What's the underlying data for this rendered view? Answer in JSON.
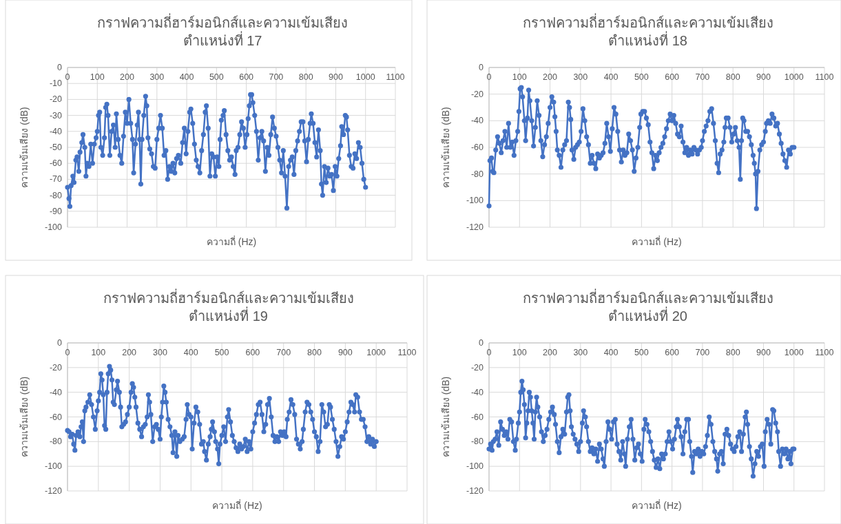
{
  "chart_data": [
    {
      "type": "line",
      "title": "กราฟความถี่ฮาร์มอนิกส์และความเข้มเสียง\nตำแหน่งที่ 17",
      "xlabel": "ความถี่ (Hz)",
      "ylabel": "ความเข้มเสียง (dB)",
      "xlim": [
        0,
        1100
      ],
      "xticks": [
        0,
        100,
        200,
        300,
        400,
        500,
        600,
        700,
        800,
        900,
        1000,
        1100
      ],
      "ylim": [
        -100,
        0
      ],
      "yticks": [
        0,
        -10,
        -20,
        -30,
        -40,
        -50,
        -60,
        -70,
        -80,
        -90,
        -100
      ],
      "grid": true,
      "marker": "circle",
      "line_style": "solid",
      "x": [
        0,
        5,
        8,
        12,
        18,
        22,
        28,
        32,
        38,
        42,
        48,
        52,
        58,
        62,
        66,
        72,
        78,
        84,
        90,
        96,
        100,
        104,
        108,
        112,
        118,
        124,
        128,
        132,
        136,
        142,
        148,
        154,
        160,
        164,
        170,
        176,
        182,
        188,
        194,
        200,
        206,
        212,
        218,
        222,
        228,
        234,
        238,
        242,
        246,
        250,
        256,
        262,
        266,
        270,
        276,
        282,
        288,
        294,
        300,
        306,
        312,
        318,
        324,
        330,
        336,
        342,
        348,
        354,
        360,
        366,
        372,
        380,
        386,
        392,
        398,
        404,
        410,
        414,
        420,
        426,
        432,
        438,
        444,
        450,
        456,
        462,
        466,
        472,
        478,
        484,
        490,
        496,
        502,
        508,
        512,
        516,
        522,
        526,
        532,
        538,
        544,
        550,
        556,
        562,
        566,
        572,
        578,
        584,
        590,
        596,
        602,
        606,
        610,
        614,
        618,
        622,
        628,
        634,
        640,
        646,
        652,
        658,
        664,
        670,
        676,
        682,
        688,
        694,
        700,
        706,
        712,
        718,
        724,
        730,
        736,
        742,
        748,
        754,
        760,
        766,
        772,
        778,
        784,
        790,
        796,
        802,
        808,
        814,
        818,
        824,
        830,
        836,
        842,
        848,
        852,
        856,
        862,
        868,
        874,
        880,
        886,
        892,
        898,
        904,
        910,
        916,
        920,
        926,
        932,
        936,
        940,
        946,
        952,
        958,
        964,
        970,
        976,
        982,
        988,
        994,
        1000
      ],
      "series": [
        {
          "color": "#4472c4",
          "values": [
            -75,
            -82,
            -87,
            -74,
            -68,
            -72,
            -58,
            -56,
            -65,
            -53,
            -47,
            -42,
            -50,
            -68,
            -60,
            -62,
            -48,
            -60,
            -48,
            -44,
            -40,
            -30,
            -28,
            -50,
            -55,
            -44,
            -25,
            -23,
            -30,
            -55,
            -40,
            -36,
            -50,
            -29,
            -45,
            -55,
            -60,
            -43,
            -28,
            -35,
            -20,
            -35,
            -45,
            -66,
            -48,
            -36,
            -28,
            -45,
            -73,
            -45,
            -30,
            -18,
            -24,
            -44,
            -51,
            -54,
            -62,
            -63,
            -45,
            -38,
            -30,
            -38,
            -55,
            -52,
            -70,
            -62,
            -65,
            -60,
            -66,
            -57,
            -55,
            -60,
            -47,
            -38,
            -54,
            -40,
            -28,
            -26,
            -35,
            -48,
            -58,
            -62,
            -66,
            -52,
            -42,
            -28,
            -24,
            -38,
            -68,
            -54,
            -56,
            -68,
            -56,
            -62,
            -45,
            -33,
            -30,
            -27,
            -42,
            -52,
            -58,
            -56,
            -62,
            -67,
            -52,
            -50,
            -42,
            -34,
            -38,
            -50,
            -42,
            -32,
            -24,
            -17,
            -17,
            -22,
            -30,
            -40,
            -58,
            -44,
            -40,
            -46,
            -65,
            -50,
            -55,
            -42,
            -31,
            -38,
            -43,
            -50,
            -58,
            -66,
            -52,
            -68,
            -88,
            -62,
            -58,
            -56,
            -67,
            -52,
            -46,
            -40,
            -34,
            -34,
            -46,
            -59,
            -45,
            -35,
            -29,
            -35,
            -47,
            -56,
            -39,
            -52,
            -73,
            -80,
            -62,
            -72,
            -63,
            -68,
            -67,
            -77,
            -62,
            -68,
            -57,
            -49,
            -37,
            -42,
            -30,
            -31,
            -39,
            -55,
            -62,
            -63,
            -54,
            -57,
            -47,
            -50,
            -60,
            -70,
            -75
          ]
        }
      ]
    },
    {
      "type": "line",
      "title": "กราฟความถี่ฮาร์มอนิกส์และความเข้มเสียง\nตำแหน่งที่ 18",
      "xlabel": "ความถี่ (Hz)",
      "ylabel": "ความเข้มเสียง (dB)",
      "xlim": [
        0,
        1100
      ],
      "xticks": [
        0,
        100,
        200,
        300,
        400,
        500,
        600,
        700,
        800,
        900,
        1000,
        1100
      ],
      "ylim": [
        -120,
        0
      ],
      "yticks": [
        0,
        -20,
        -40,
        -60,
        -80,
        -100,
        -120
      ],
      "grid": true,
      "marker": "circle",
      "line_style": "solid",
      "x": [
        0,
        3,
        8,
        12,
        16,
        22,
        28,
        34,
        40,
        46,
        52,
        58,
        64,
        70,
        76,
        82,
        88,
        94,
        98,
        102,
        106,
        110,
        116,
        120,
        126,
        130,
        134,
        140,
        146,
        152,
        158,
        164,
        170,
        176,
        182,
        188,
        194,
        200,
        206,
        212,
        216,
        220,
        224,
        230,
        236,
        242,
        248,
        254,
        260,
        264,
        268,
        272,
        278,
        284,
        290,
        296,
        302,
        308,
        314,
        320,
        326,
        332,
        338,
        344,
        350,
        356,
        362,
        368,
        374,
        380,
        386,
        392,
        398,
        404,
        410,
        416,
        422,
        428,
        434,
        440,
        446,
        452,
        458,
        464,
        470,
        476,
        482,
        488,
        494,
        498,
        504,
        510,
        516,
        522,
        528,
        534,
        540,
        546,
        552,
        558,
        564,
        570,
        576,
        582,
        588,
        594,
        600,
        606,
        612,
        618,
        624,
        630,
        636,
        642,
        648,
        654,
        660,
        666,
        672,
        678,
        684,
        690,
        696,
        700,
        706,
        712,
        718,
        724,
        730,
        736,
        742,
        748,
        753,
        758,
        764,
        770,
        774,
        778,
        784,
        790,
        796,
        802,
        808,
        814,
        820,
        824,
        828,
        832,
        836,
        842,
        848,
        854,
        860,
        866,
        870,
        874,
        877,
        882,
        888,
        894,
        900,
        906,
        910,
        916,
        922,
        928,
        934,
        940,
        946,
        952,
        958,
        964,
        970,
        976,
        982,
        988,
        994,
        1000
      ],
      "series": [
        {
          "color": "#4472c4",
          "values": [
            -104,
            -70,
            -68,
            -78,
            -79,
            -62,
            -52,
            -57,
            -64,
            -55,
            -48,
            -60,
            -42,
            -60,
            -56,
            -66,
            -55,
            -48,
            -33,
            -16,
            -15,
            -22,
            -40,
            -55,
            -38,
            -17,
            -25,
            -40,
            -59,
            -45,
            -25,
            -36,
            -55,
            -67,
            -58,
            -52,
            -42,
            -30,
            -22,
            -26,
            -37,
            -48,
            -62,
            -66,
            -75,
            -62,
            -58,
            -55,
            -26,
            -30,
            -39,
            -62,
            -69,
            -60,
            -58,
            -56,
            -48,
            -31,
            -40,
            -52,
            -58,
            -72,
            -66,
            -72,
            -76,
            -65,
            -68,
            -66,
            -64,
            -57,
            -42,
            -52,
            -63,
            -46,
            -30,
            -35,
            -48,
            -62,
            -71,
            -62,
            -66,
            -64,
            -50,
            -55,
            -62,
            -78,
            -68,
            -60,
            -45,
            -35,
            -33,
            -33,
            -38,
            -43,
            -56,
            -64,
            -76,
            -66,
            -70,
            -64,
            -60,
            -57,
            -52,
            -46,
            -40,
            -35,
            -40,
            -36,
            -42,
            -50,
            -52,
            -44,
            -56,
            -64,
            -60,
            -66,
            -62,
            -65,
            -60,
            -62,
            -65,
            -62,
            -60,
            -55,
            -48,
            -44,
            -40,
            -33,
            -31,
            -42,
            -55,
            -72,
            -79,
            -65,
            -62,
            -56,
            -45,
            -38,
            -38,
            -45,
            -56,
            -50,
            -45,
            -55,
            -60,
            -84,
            -55,
            -38,
            -40,
            -48,
            -48,
            -52,
            -58,
            -66,
            -72,
            -80,
            -106,
            -78,
            -62,
            -58,
            -56,
            -48,
            -42,
            -40,
            -42,
            -35,
            -38,
            -44,
            -42,
            -50,
            -57,
            -65,
            -70,
            -75,
            -62,
            -65,
            -60,
            -60
          ]
        }
      ]
    },
    {
      "type": "line",
      "title": "กราฟความถี่ฮาร์มอนิกส์และความเข้มเสียง\nตำแหน่งที่ 19",
      "xlabel": "ความถี่ (Hz)",
      "ylabel": "ความเข้มเสียง (dB)",
      "xlim": [
        0,
        1100
      ],
      "xticks": [
        0,
        100,
        200,
        300,
        400,
        500,
        600,
        700,
        800,
        900,
        1000,
        1100
      ],
      "ylim": [
        -120,
        0
      ],
      "yticks": [
        0,
        -20,
        -40,
        -60,
        -80,
        -100,
        -120
      ],
      "grid": true,
      "marker": "circle",
      "line_style": "solid",
      "x": [
        0,
        5,
        10,
        15,
        20,
        24,
        28,
        34,
        40,
        44,
        48,
        52,
        56,
        60,
        66,
        72,
        78,
        84,
        90,
        96,
        100,
        104,
        108,
        112,
        116,
        120,
        124,
        128,
        132,
        136,
        140,
        144,
        148,
        152,
        158,
        162,
        168,
        172,
        176,
        182,
        188,
        194,
        200,
        206,
        210,
        214,
        218,
        222,
        228,
        234,
        240,
        246,
        252,
        258,
        262,
        266,
        270,
        276,
        282,
        288,
        294,
        300,
        304,
        308,
        312,
        316,
        320,
        326,
        332,
        338,
        342,
        348,
        354,
        358,
        364,
        372,
        378,
        384,
        388,
        394,
        400,
        404,
        410,
        416,
        422,
        428,
        434,
        440,
        444,
        450,
        456,
        462,
        466,
        470,
        476,
        480,
        486,
        490,
        494,
        500,
        506,
        512,
        518,
        522,
        528,
        534,
        540,
        546,
        552,
        558,
        564,
        570,
        576,
        582,
        588,
        594,
        600,
        606,
        612,
        618,
        624,
        630,
        636,
        642,
        648,
        654,
        660,
        666,
        672,
        678,
        684,
        690,
        696,
        702,
        708,
        712,
        718,
        724,
        730,
        736,
        742,
        748,
        754,
        760,
        764,
        770,
        776,
        782,
        788,
        794,
        800,
        806,
        812,
        818,
        824,
        830,
        836,
        842,
        848,
        852,
        858,
        864,
        870,
        876,
        882,
        888,
        894,
        900,
        906,
        912,
        918,
        924,
        930,
        934,
        940,
        946,
        952,
        958,
        964,
        970,
        976,
        982,
        988,
        994,
        1000
      ],
      "series": [
        {
          "color": "#4472c4",
          "values": [
            -71,
            -72,
            -76,
            -74,
            -82,
            -87,
            -75,
            -72,
            -76,
            -68,
            -64,
            -80,
            -55,
            -52,
            -48,
            -42,
            -50,
            -60,
            -70,
            -55,
            -47,
            -40,
            -25,
            -30,
            -42,
            -67,
            -70,
            -40,
            -25,
            -19,
            -22,
            -30,
            -48,
            -50,
            -38,
            -31,
            -40,
            -52,
            -68,
            -66,
            -64,
            -58,
            -52,
            -40,
            -33,
            -36,
            -44,
            -52,
            -65,
            -70,
            -76,
            -68,
            -66,
            -60,
            -42,
            -48,
            -58,
            -80,
            -68,
            -66,
            -70,
            -78,
            -60,
            -48,
            -35,
            -40,
            -48,
            -62,
            -68,
            -75,
            -89,
            -72,
            -92,
            -75,
            -80,
            -78,
            -76,
            -62,
            -50,
            -58,
            -60,
            -86,
            -65,
            -52,
            -56,
            -66,
            -82,
            -80,
            -88,
            -95,
            -82,
            -76,
            -70,
            -64,
            -72,
            -80,
            -86,
            -98,
            -82,
            -75,
            -68,
            -80,
            -60,
            -54,
            -64,
            -75,
            -80,
            -85,
            -88,
            -82,
            -86,
            -84,
            -78,
            -88,
            -80,
            -86,
            -72,
            -65,
            -58,
            -50,
            -48,
            -58,
            -72,
            -66,
            -50,
            -45,
            -60,
            -75,
            -80,
            -76,
            -80,
            -72,
            -75,
            -72,
            -76,
            -62,
            -56,
            -46,
            -50,
            -58,
            -78,
            -82,
            -86,
            -80,
            -70,
            -56,
            -48,
            -50,
            -56,
            -62,
            -72,
            -76,
            -88,
            -80,
            -50,
            -56,
            -68,
            -66,
            -50,
            -52,
            -62,
            -70,
            -80,
            -92,
            -84,
            -76,
            -78,
            -72,
            -64,
            -56,
            -48,
            -50,
            -56,
            -42,
            -44,
            -56,
            -62,
            -62,
            -68,
            -80,
            -76,
            -82,
            -78,
            -84,
            -80
          ]
        }
      ]
    },
    {
      "type": "line",
      "title": "กราฟความถี่ฮาร์มอนิกส์และความเข้มเสียง\nตำแหน่งที่ 20",
      "xlabel": "ความถี่ (Hz)",
      "ylabel": "ความเข้มเสียง (dB)",
      "xlim": [
        0,
        1100
      ],
      "xticks": [
        0,
        100,
        200,
        300,
        400,
        500,
        600,
        700,
        800,
        900,
        1000,
        1100
      ],
      "ylim": [
        -120,
        0
      ],
      "yticks": [
        0,
        -20,
        -40,
        -60,
        -80,
        -100,
        -120
      ],
      "grid": true,
      "marker": "circle",
      "line_style": "solid",
      "x": [
        0,
        5,
        10,
        14,
        20,
        26,
        32,
        38,
        44,
        50,
        56,
        62,
        68,
        74,
        80,
        86,
        90,
        96,
        100,
        104,
        108,
        112,
        116,
        120,
        124,
        128,
        132,
        136,
        140,
        144,
        148,
        152,
        156,
        160,
        166,
        172,
        178,
        184,
        190,
        196,
        202,
        208,
        214,
        218,
        224,
        230,
        236,
        242,
        248,
        254,
        258,
        262,
        266,
        270,
        276,
        282,
        288,
        294,
        300,
        306,
        310,
        316,
        320,
        326,
        332,
        338,
        344,
        350,
        356,
        362,
        368,
        374,
        378,
        384,
        390,
        396,
        402,
        408,
        414,
        420,
        426,
        432,
        438,
        444,
        448,
        454,
        460,
        466,
        472,
        478,
        484,
        490,
        496,
        502,
        508,
        512,
        518,
        524,
        530,
        536,
        542,
        548,
        554,
        560,
        566,
        572,
        578,
        584,
        590,
        596,
        602,
        608,
        614,
        618,
        624,
        630,
        636,
        642,
        648,
        654,
        658,
        664,
        668,
        674,
        680,
        686,
        692,
        698,
        704,
        710,
        716,
        722,
        728,
        734,
        740,
        746,
        750,
        756,
        762,
        768,
        774,
        780,
        786,
        792,
        798,
        804,
        810,
        816,
        822,
        828,
        834,
        840,
        844,
        848,
        854,
        860,
        866,
        872,
        878,
        884,
        890,
        896,
        902,
        906,
        912,
        918,
        924,
        930,
        934,
        940,
        946,
        950,
        956,
        962,
        968,
        974,
        980,
        986,
        990,
        996,
        1000
      ],
      "series": [
        {
          "color": "#4472c4",
          "values": [
            -86,
            -82,
            -87,
            -80,
            -78,
            -72,
            -83,
            -64,
            -70,
            -75,
            -72,
            -78,
            -62,
            -64,
            -80,
            -87,
            -78,
            -65,
            -56,
            -40,
            -31,
            -38,
            -50,
            -77,
            -65,
            -55,
            -40,
            -44,
            -55,
            -65,
            -78,
            -56,
            -44,
            -52,
            -60,
            -72,
            -80,
            -75,
            -70,
            -62,
            -56,
            -52,
            -58,
            -66,
            -80,
            -89,
            -76,
            -70,
            -74,
            -56,
            -44,
            -42,
            -55,
            -68,
            -74,
            -78,
            -82,
            -88,
            -80,
            -65,
            -55,
            -60,
            -68,
            -80,
            -88,
            -85,
            -90,
            -86,
            -96,
            -82,
            -86,
            -94,
            -100,
            -80,
            -64,
            -70,
            -78,
            -64,
            -62,
            -82,
            -88,
            -95,
            -80,
            -90,
            -100,
            -78,
            -68,
            -62,
            -78,
            -95,
            -85,
            -82,
            -90,
            -96,
            -70,
            -62,
            -66,
            -72,
            -80,
            -88,
            -95,
            -101,
            -94,
            -102,
            -90,
            -94,
            -90,
            -80,
            -72,
            -80,
            -86,
            -78,
            -68,
            -62,
            -68,
            -76,
            -90,
            -72,
            -62,
            -62,
            -80,
            -92,
            -105,
            -88,
            -90,
            -86,
            -92,
            -88,
            -90,
            -84,
            -75,
            -60,
            -66,
            -80,
            -88,
            -94,
            -104,
            -90,
            -88,
            -98,
            -74,
            -70,
            -75,
            -82,
            -86,
            -88,
            -84,
            -76,
            -72,
            -88,
            -74,
            -60,
            -56,
            -66,
            -84,
            -94,
            -108,
            -98,
            -88,
            -92,
            -84,
            -82,
            -100,
            -72,
            -62,
            -66,
            -82,
            -54,
            -55,
            -65,
            -72,
            -88,
            -100,
            -86,
            -90,
            -86,
            -94,
            -88,
            -98,
            -86,
            -86
          ]
        }
      ]
    }
  ]
}
